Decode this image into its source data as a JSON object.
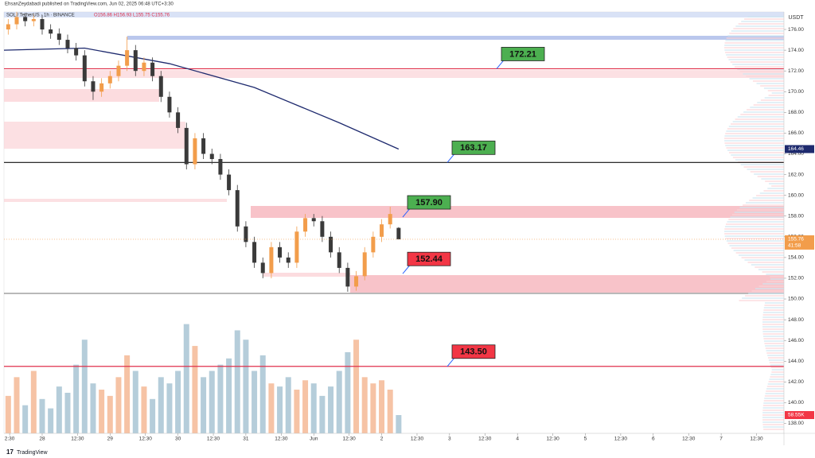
{
  "header": {
    "publisher": "EhsanZeydabadi published on TradingView.com, Jun 02, 2025 06:48 UTC+3:30",
    "symbol": "SOL / TetherUS · 1h · BINANCE",
    "ohlc_text": "O156.86 H156.93 L155.75 C155.76",
    "currency": "USDT",
    "countdown": "41:58",
    "brand": "TradingView"
  },
  "chart_data": {
    "type": "candlestick",
    "x": [
      -12,
      -9,
      -6,
      -3,
      0,
      3,
      6,
      9,
      12,
      15,
      18,
      21,
      24,
      27,
      30,
      33,
      36,
      39,
      42,
      45,
      48,
      51,
      54,
      57,
      60,
      63,
      66,
      69,
      72,
      75,
      78,
      81,
      84,
      87,
      90,
      93,
      96,
      99,
      102,
      105,
      108,
      111,
      114,
      117,
      120,
      123,
      126
    ],
    "open": [
      176.0,
      176.5,
      177.2,
      176.8,
      177.0,
      176.0,
      175.6,
      175.0,
      174.2,
      173.5,
      171.0,
      170.0,
      170.8,
      171.5,
      172.5,
      174.0,
      172.0,
      172.8,
      171.5,
      169.5,
      168.0,
      166.5,
      163.0,
      165.5,
      164.0,
      163.5,
      162.0,
      160.5,
      157.0,
      155.5,
      153.5,
      152.5,
      155.0,
      154.0,
      153.5,
      156.5,
      157.8,
      157.5,
      156.0,
      154.5,
      153.0,
      151.2,
      152.2,
      154.5,
      156.0,
      157.2,
      156.86
    ],
    "high": [
      177.0,
      177.7,
      177.6,
      177.5,
      177.4,
      176.5,
      176.1,
      175.5,
      174.7,
      174.0,
      171.5,
      171.3,
      172.0,
      173.0,
      175.3,
      174.5,
      173.3,
      173.3,
      172.0,
      170.0,
      168.5,
      167.0,
      166.0,
      166.0,
      164.5,
      164.0,
      162.5,
      161.0,
      157.5,
      156.0,
      154.0,
      155.5,
      155.5,
      154.5,
      157.0,
      158.2,
      158.2,
      158.0,
      156.5,
      155.0,
      153.5,
      152.7,
      155.0,
      156.5,
      157.7,
      158.9,
      156.93
    ],
    "low": [
      175.5,
      176.0,
      176.3,
      176.3,
      175.5,
      175.1,
      174.5,
      173.7,
      173.0,
      170.5,
      169.2,
      169.5,
      170.3,
      171.0,
      172.0,
      171.5,
      171.5,
      171.0,
      169.0,
      167.5,
      166.0,
      162.5,
      162.5,
      163.5,
      163.0,
      161.5,
      160.0,
      156.5,
      155.0,
      153.0,
      152.0,
      152.0,
      153.5,
      153.0,
      153.0,
      156.0,
      157.0,
      155.5,
      154.0,
      152.5,
      150.7,
      150.8,
      151.8,
      154.0,
      155.5,
      156.8,
      155.75
    ],
    "close": [
      176.5,
      177.2,
      176.8,
      177.0,
      176.0,
      175.6,
      175.0,
      174.2,
      173.5,
      171.0,
      170.0,
      170.8,
      171.5,
      172.5,
      174.0,
      172.0,
      172.8,
      171.5,
      169.5,
      168.0,
      166.5,
      163.0,
      165.5,
      164.0,
      163.5,
      162.0,
      160.5,
      157.0,
      155.5,
      153.5,
      152.5,
      155.0,
      154.0,
      153.5,
      156.5,
      157.8,
      157.5,
      156.0,
      154.5,
      153.0,
      151.2,
      152.2,
      154.5,
      156.0,
      157.2,
      158.2,
      155.76
    ],
    "volume": [
      120,
      180,
      90,
      200,
      110,
      80,
      150,
      130,
      220,
      300,
      160,
      140,
      120,
      180,
      250,
      200,
      150,
      110,
      180,
      160,
      200,
      350,
      280,
      180,
      200,
      220,
      240,
      330,
      300,
      200,
      250,
      160,
      150,
      180,
      140,
      170,
      160,
      120,
      150,
      200,
      260,
      300,
      180,
      160,
      170,
      140,
      58.55
    ],
    "volume_last_label": "58.55K",
    "up_color": "#f29d4b",
    "down_color": "#3a3a3a",
    "volume_up_color": "#f5b895",
    "volume_down_color": "#a8c4d4",
    "ma": {
      "color": "#1e2a6e",
      "x": [
        -13.5,
        15,
        45,
        75,
        105,
        126
      ],
      "values": [
        174.0,
        174.2,
        172.7,
        170.4,
        167.0,
        164.46
      ]
    },
    "levels": [
      {
        "value": 172.21,
        "label": "172.21",
        "box": "#4caf50",
        "line": "#e0314b"
      },
      {
        "value": 163.17,
        "label": "163.17",
        "box": "#4caf50",
        "line": "#111111"
      },
      {
        "value": 157.9,
        "label": "157.90",
        "box": "#4caf50"
      },
      {
        "value": 152.44,
        "label": "152.44",
        "box": "#f23645"
      },
      {
        "value": 143.5,
        "label": "143.50",
        "box": "#f23645",
        "line": "#e0314b"
      }
    ],
    "xlim": [
      -13.5,
      262.2
    ],
    "ylim": [
      137.04,
      177.69
    ],
    "vlim": [
      0,
      1350
    ],
    "xticks": [
      {
        "value": -11.5,
        "label": "2:30"
      },
      {
        "value": 0,
        "label": "28"
      },
      {
        "value": 12.5,
        "label": "12:30"
      },
      {
        "value": 24,
        "label": "29"
      },
      {
        "value": 36.5,
        "label": "12:30"
      },
      {
        "value": 48,
        "label": "30"
      },
      {
        "value": 60.5,
        "label": "12:30"
      },
      {
        "value": 72,
        "label": "31"
      },
      {
        "value": 84.5,
        "label": "12:30"
      },
      {
        "value": 96,
        "label": "Jun"
      },
      {
        "value": 108.5,
        "label": "12:30"
      },
      {
        "value": 120,
        "label": "2"
      },
      {
        "value": 132.5,
        "label": "12:30"
      },
      {
        "value": 144,
        "label": "3"
      },
      {
        "value": 156.5,
        "label": "12:30"
      },
      {
        "value": 168,
        "label": "4"
      },
      {
        "value": 180.5,
        "label": "12:30"
      },
      {
        "value": 192,
        "label": "5"
      },
      {
        "value": 204.5,
        "label": "12:30"
      },
      {
        "value": 216,
        "label": "6"
      },
      {
        "value": 228.5,
        "label": "12:30"
      },
      {
        "value": 240,
        "label": "7"
      },
      {
        "value": 252.5,
        "label": "12:30"
      }
    ],
    "yticks": [
      {
        "value": 138,
        "label": "138.00"
      },
      {
        "value": 140,
        "label": "140.00"
      },
      {
        "value": 142,
        "label": "142.00"
      },
      {
        "value": 144,
        "label": "144.00"
      },
      {
        "value": 146,
        "label": "146.00"
      },
      {
        "value": 148,
        "label": "148.00"
      },
      {
        "value": 150,
        "label": "150.00"
      },
      {
        "value": 152,
        "label": "152.00"
      },
      {
        "value": 154,
        "label": "154.00"
      },
      {
        "value": 156,
        "label": "156.00"
      },
      {
        "value": 158,
        "label": "158.00"
      },
      {
        "value": 160,
        "label": "160.00"
      },
      {
        "value": 162,
        "label": "162.00"
      },
      {
        "value": 164,
        "label": "164.00"
      },
      {
        "value": 166,
        "label": "166.00"
      },
      {
        "value": 168,
        "label": "168.00"
      },
      {
        "value": 170,
        "label": "170.00"
      },
      {
        "value": 172,
        "label": "172.00"
      },
      {
        "value": 174,
        "label": "174.00"
      },
      {
        "value": 176,
        "label": "176.00"
      }
    ],
    "grid": false
  }
}
